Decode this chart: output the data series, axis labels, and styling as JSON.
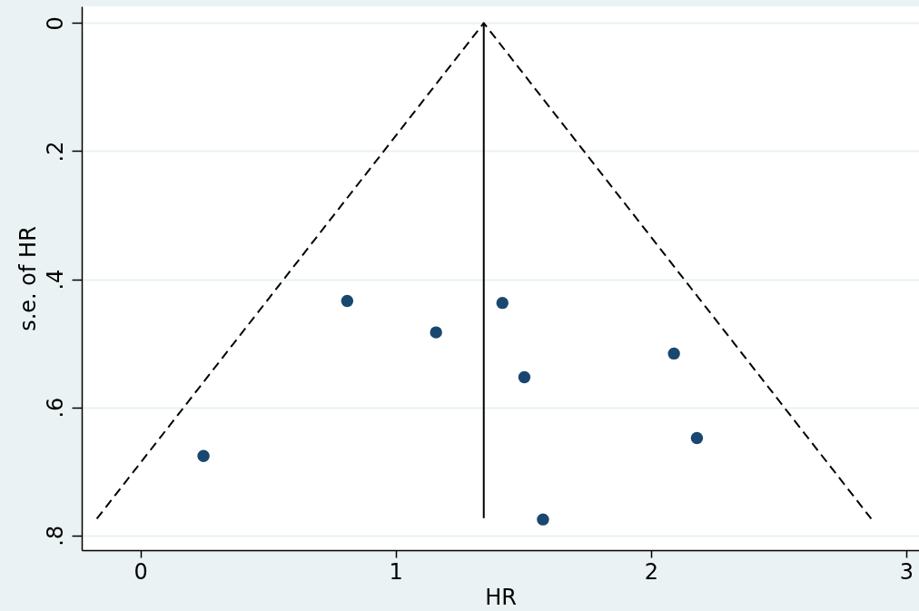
{
  "chart_data": {
    "type": "scatter",
    "xlabel": "HR",
    "ylabel": "s.e. of HR",
    "xlim": [
      -0.23,
      3.05
    ],
    "ylim": [
      0.823,
      -0.026
    ],
    "xticks": [
      0,
      1,
      2,
      3
    ],
    "yticks": [
      0,
      {
        "value": 0.2,
        "label": ".2"
      },
      {
        "value": 0.4,
        "label": ".4"
      },
      {
        "value": 0.6,
        "label": ".6"
      },
      {
        "value": 0.8,
        "label": ".8"
      }
    ],
    "grid": "y",
    "series": [
      {
        "type": "line",
        "color": "#000000",
        "line_style": "dashed",
        "x": [
          -0.171,
          1.345,
          2.863
        ],
        "values": [
          0.774,
          0,
          0.774
        ]
      },
      {
        "type": "line",
        "color": "#000000",
        "line_style": "solid",
        "x": [
          1.345,
          1.345
        ],
        "values": [
          0,
          0.773
        ]
      },
      {
        "color": "#1a476f",
        "marker": "circle",
        "x": [
          0.247,
          0.81,
          1.158,
          1.418,
          1.504,
          1.577,
          2.09,
          2.18
        ],
        "values": [
          0.676,
          0.434,
          0.483,
          0.437,
          0.553,
          0.775,
          0.516,
          0.648
        ]
      }
    ]
  }
}
